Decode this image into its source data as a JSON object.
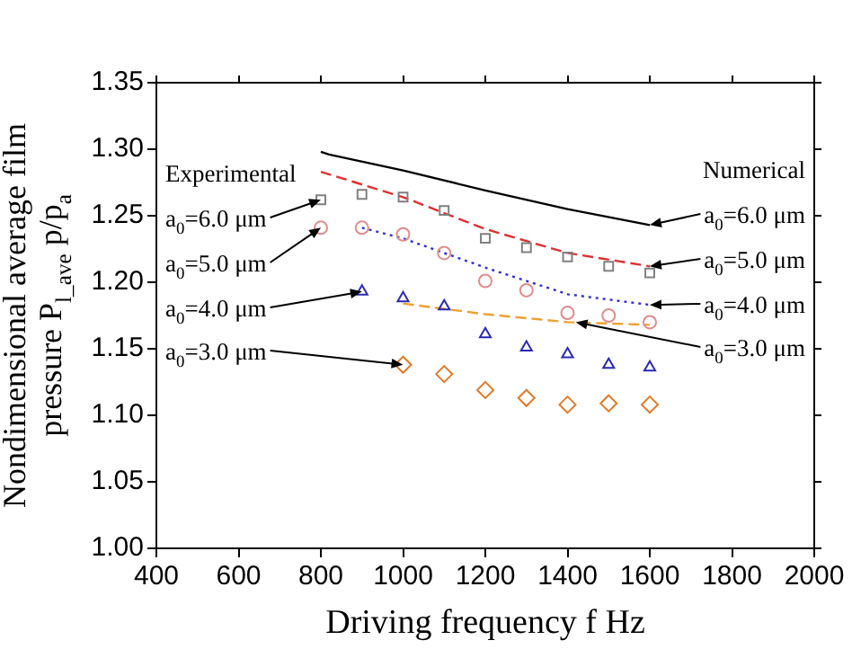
{
  "chart_data": {
    "type": "scatter",
    "xlabel": "Driving frequency f Hz",
    "ylabel": "Nondimensional average film pressure P$_{l_ave}$ p/p$_{a}$",
    "xlim": [
      400,
      2000
    ],
    "xticks": [
      400,
      600,
      800,
      1000,
      1200,
      1400,
      1600,
      1800,
      2000
    ],
    "ylim": [
      1.0,
      1.35
    ],
    "yticks": [
      {
        "value": 1.0,
        "label": "1.00"
      },
      1.05,
      {
        "value": 1.1,
        "label": "1.10"
      },
      1.15,
      {
        "value": 1.2,
        "label": "1.20"
      },
      1.25,
      {
        "value": 1.3,
        "label": "1.30"
      },
      1.35
    ],
    "grid": false,
    "legend": false,
    "series": [
      {
        "marker": "square",
        "color": "#808080",
        "x": [
          800,
          900,
          1000,
          1100,
          1200,
          1300,
          1400,
          1500,
          1600
        ],
        "values": [
          1.262,
          1.266,
          1.264,
          1.254,
          1.233,
          1.226,
          1.219,
          1.212,
          1.207
        ]
      },
      {
        "marker": "circle",
        "color": "#e08c8c",
        "x": [
          800,
          900,
          1000,
          1100,
          1200,
          1300,
          1400,
          1500,
          1600
        ],
        "values": [
          1.241,
          1.241,
          1.236,
          1.222,
          1.201,
          1.194,
          1.177,
          1.175,
          1.17
        ]
      },
      {
        "marker": "triangle",
        "color": "#2a2ab4",
        "x": [
          900,
          1000,
          1100,
          1200,
          1300,
          1400,
          1500,
          1600
        ],
        "values": [
          1.193,
          1.188,
          1.182,
          1.161,
          1.151,
          1.146,
          1.138,
          1.136
        ]
      },
      {
        "marker": "diamond",
        "color": "#e07a28",
        "x": [
          1000,
          1100,
          1200,
          1300,
          1400,
          1500,
          1600
        ],
        "values": [
          1.138,
          1.131,
          1.119,
          1.113,
          1.108,
          1.109,
          1.108
        ]
      },
      {
        "type": "line",
        "line_style": "solid",
        "color": "#000000",
        "x": [
          800,
          820,
          1000,
          1200,
          1400,
          1600
        ],
        "values": [
          1.298,
          1.296,
          1.284,
          1.269,
          1.255,
          1.243
        ]
      },
      {
        "type": "line",
        "line_style": "dashed",
        "color": "#e03030",
        "x": [
          800,
          1000,
          1200,
          1400,
          1600
        ],
        "values": [
          1.283,
          1.264,
          1.24,
          1.222,
          1.212
        ]
      },
      {
        "type": "line",
        "line_style": "dotted",
        "color": "#3030d0",
        "x": [
          900,
          1000,
          1200,
          1400,
          1600
        ],
        "values": [
          1.241,
          1.233,
          1.211,
          1.191,
          1.183
        ]
      },
      {
        "type": "line",
        "line_style": "dashed",
        "color": "#f0a030",
        "x": [
          1000,
          1200,
          1400,
          1600
        ],
        "values": [
          1.184,
          1.176,
          1.17,
          1.168
        ]
      }
    ],
    "annotations": [
      "Experimental",
      {
        "text": "a$_{0}$=6.0 μm",
        "x": 800,
        "y": 1.262
      },
      {
        "text": "a$_{0}$=5.0 μm",
        "x": 800,
        "y": 1.241
      },
      {
        "text": "a$_{0}$=4.0 μm",
        "x": 900,
        "y": 1.193
      },
      {
        "text": "a$_{0}$=3.0 μm",
        "x": 1000,
        "y": 1.138
      },
      "Numerical",
      {
        "text": "a$_{0}$=6.0 μm",
        "x": 1600,
        "y": 1.243
      },
      {
        "text": "a$_{0}$=5.0 μm",
        "x": 1600,
        "y": 1.212
      },
      {
        "text": "a$_{0}$=4.0 μm",
        "x": 1600,
        "y": 1.183
      },
      {
        "text": "a$_{0}$=3.0 μm",
        "x": 1420,
        "y": 1.17
      }
    ]
  }
}
